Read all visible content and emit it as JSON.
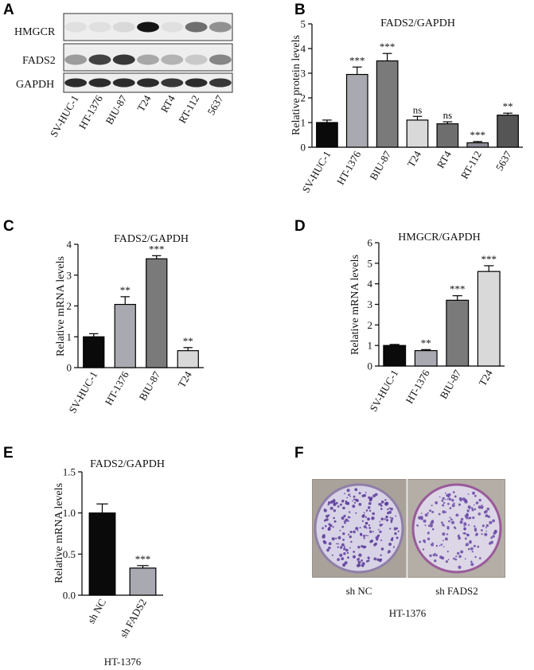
{
  "panel_letters": [
    "A",
    "B",
    "C",
    "D",
    "E",
    "F"
  ],
  "colors": {
    "SV-HUC-1": "#0a0a0a",
    "HT-1376": "#a9a9b1",
    "BIU-87": "#7a7a7a",
    "T24": "#d9d9d9",
    "RT4": "#6e6e6e",
    "RT-112": "#8a8a94",
    "5637": "#555555",
    "sh NC": "#0a0a0a",
    "sh FADS2": "#a9a9b1"
  },
  "blot": {
    "rows": [
      "HMGCR",
      "FADS2",
      "GAPDH"
    ],
    "lanes": [
      "SV-HUC-1",
      "HT-1376",
      "BIU-87",
      "T24",
      "RT4",
      "RT-112",
      "5637"
    ],
    "intensities": {
      "HMGCR": [
        0.05,
        0.05,
        0.08,
        0.95,
        0.05,
        0.55,
        0.4
      ],
      "FADS2": [
        0.35,
        0.75,
        0.8,
        0.3,
        0.25,
        0.15,
        0.45
      ],
      "GAPDH": [
        0.85,
        0.85,
        0.85,
        0.85,
        0.8,
        0.85,
        0.8
      ]
    }
  },
  "photo": {
    "labels": [
      "sh NC",
      "sh FADS2"
    ],
    "caption": "HT-1376"
  },
  "chart_data": [
    {
      "panel": "B",
      "type": "bar",
      "title": "FADS2/GAPDH",
      "ylabel": "Relative protein levels",
      "categories": [
        "SV-HUC-1",
        "HT-1376",
        "BIU-87",
        "T24",
        "RT4",
        "RT-112",
        "5637"
      ],
      "values": [
        1.0,
        2.95,
        3.5,
        1.1,
        0.95,
        0.18,
        1.3
      ],
      "errors": [
        0.1,
        0.3,
        0.3,
        0.15,
        0.08,
        0.05,
        0.08
      ],
      "significance": [
        "",
        "***",
        "***",
        "ns",
        "ns",
        "***",
        "**"
      ],
      "ylim": [
        0,
        5
      ],
      "yticks": [
        0,
        1,
        2,
        3,
        4,
        5
      ]
    },
    {
      "panel": "C",
      "type": "bar",
      "title": "FADS2/GAPDH",
      "ylabel": "Relative mRNA levels",
      "categories": [
        "SV-HUC-1",
        "HT-1376",
        "BIU-87",
        "T24"
      ],
      "values": [
        1.0,
        2.05,
        3.53,
        0.55
      ],
      "errors": [
        0.1,
        0.25,
        0.1,
        0.1
      ],
      "significance": [
        "",
        "**",
        "***",
        "**"
      ],
      "ylim": [
        0,
        4
      ],
      "yticks": [
        0,
        1,
        2,
        3,
        4
      ]
    },
    {
      "panel": "D",
      "type": "bar",
      "title": "HMGCR/GAPDH",
      "ylabel": "Relative mRNA levels",
      "categories": [
        "SV-HUC-1",
        "HT-1376",
        "BIU-87",
        "T24"
      ],
      "values": [
        1.0,
        0.75,
        3.2,
        4.6
      ],
      "errors": [
        0.05,
        0.05,
        0.22,
        0.28
      ],
      "significance": [
        "",
        "**",
        "***",
        "***"
      ],
      "ylim": [
        0,
        6
      ],
      "yticks": [
        0,
        1,
        2,
        3,
        4,
        5,
        6
      ]
    },
    {
      "panel": "E",
      "type": "bar",
      "title": "FADS2/GAPDH",
      "ylabel": "Relative mRNA levels",
      "xlabel": "HT-1376",
      "categories": [
        "sh NC",
        "sh FADS2"
      ],
      "values": [
        1.0,
        0.33
      ],
      "errors": [
        0.11,
        0.03
      ],
      "significance": [
        "",
        "***"
      ],
      "ylim": [
        0,
        1.5
      ],
      "yticks": [
        "0.0",
        "0.5",
        "1.0",
        "1.5"
      ]
    }
  ]
}
